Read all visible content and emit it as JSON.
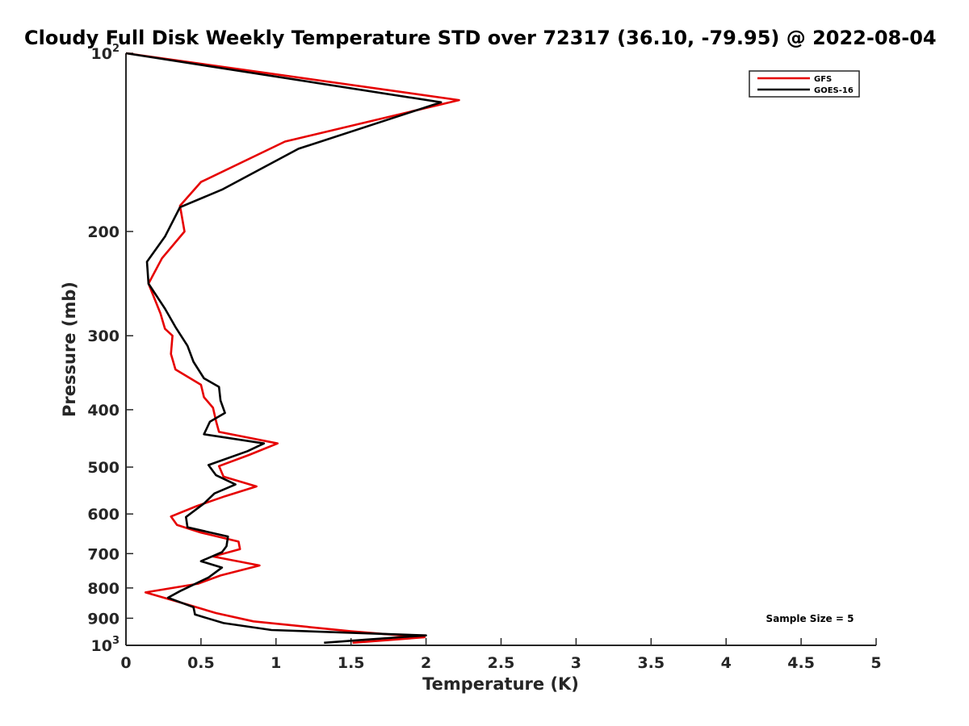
{
  "chart_data": {
    "type": "line",
    "title": "Cloudy Full Disk Weekly Temperature STD over 72317 (36.10, -79.95) @ 2022-08-04",
    "xlabel": "Temperature (K)",
    "ylabel": "Pressure (mb)",
    "xlim": [
      0,
      5
    ],
    "ylim": [
      100,
      1000
    ],
    "y_scale": "log",
    "y_reversed": true,
    "x_ticks": [
      0,
      0.5,
      1,
      1.5,
      2,
      2.5,
      3,
      3.5,
      4,
      4.5,
      5
    ],
    "x_tick_labels": [
      "0",
      "0.5",
      "1",
      "1.5",
      "2",
      "2.5",
      "3",
      "3.5",
      "4",
      "4.5",
      "5"
    ],
    "y_ticks": [
      100,
      200,
      300,
      400,
      500,
      600,
      700,
      800,
      900,
      1000
    ],
    "y_tick_labels": [
      {
        "base": "10",
        "exp": "2"
      },
      {
        "base": "200",
        "exp": ""
      },
      {
        "base": "300",
        "exp": ""
      },
      {
        "base": "400",
        "exp": ""
      },
      {
        "base": "500",
        "exp": ""
      },
      {
        "base": "600",
        "exp": ""
      },
      {
        "base": "700",
        "exp": ""
      },
      {
        "base": "800",
        "exp": ""
      },
      {
        "base": "900",
        "exp": ""
      },
      {
        "base": "10",
        "exp": "3"
      }
    ],
    "grid": false,
    "legend_position": "top-right",
    "series": [
      {
        "name": "GFS",
        "color": "#e60000",
        "points": [
          [
            0.0,
            100
          ],
          [
            2.22,
            120
          ],
          [
            1.06,
            141
          ],
          [
            0.5,
            165
          ],
          [
            0.36,
            181
          ],
          [
            0.39,
            200
          ],
          [
            0.24,
            222
          ],
          [
            0.15,
            245
          ],
          [
            0.23,
            275
          ],
          [
            0.26,
            292
          ],
          [
            0.31,
            300
          ],
          [
            0.3,
            322
          ],
          [
            0.33,
            342
          ],
          [
            0.5,
            363
          ],
          [
            0.52,
            381
          ],
          [
            0.58,
            397
          ],
          [
            0.6,
            418
          ],
          [
            0.62,
            436
          ],
          [
            1.01,
            456
          ],
          [
            0.82,
            477
          ],
          [
            0.62,
            498
          ],
          [
            0.65,
            519
          ],
          [
            0.87,
            539
          ],
          [
            0.66,
            560
          ],
          [
            0.47,
            582
          ],
          [
            0.3,
            606
          ],
          [
            0.34,
            626
          ],
          [
            0.5,
            645
          ],
          [
            0.75,
            668
          ],
          [
            0.76,
            688
          ],
          [
            0.58,
            708
          ],
          [
            0.89,
            733
          ],
          [
            0.63,
            762
          ],
          [
            0.48,
            787
          ],
          [
            0.13,
            814
          ],
          [
            0.4,
            852
          ],
          [
            0.6,
            882
          ],
          [
            0.85,
            911
          ],
          [
            1.5,
            947
          ],
          [
            1.99,
            969
          ],
          [
            1.51,
            990
          ]
        ]
      },
      {
        "name": "GOES-16",
        "color": "#000000",
        "points": [
          [
            0.0,
            100
          ],
          [
            2.1,
            121
          ],
          [
            1.15,
            145
          ],
          [
            0.64,
            170
          ],
          [
            0.36,
            182
          ],
          [
            0.26,
            204
          ],
          [
            0.14,
            225
          ],
          [
            0.15,
            245
          ],
          [
            0.26,
            270
          ],
          [
            0.33,
            290
          ],
          [
            0.41,
            312
          ],
          [
            0.45,
            332
          ],
          [
            0.52,
            354
          ],
          [
            0.62,
            366
          ],
          [
            0.63,
            386
          ],
          [
            0.66,
            405
          ],
          [
            0.56,
            419
          ],
          [
            0.52,
            440
          ],
          [
            0.92,
            456
          ],
          [
            0.81,
            470
          ],
          [
            0.55,
            496
          ],
          [
            0.6,
            516
          ],
          [
            0.73,
            535
          ],
          [
            0.59,
            554
          ],
          [
            0.52,
            576
          ],
          [
            0.4,
            607
          ],
          [
            0.41,
            632
          ],
          [
            0.68,
            655
          ],
          [
            0.67,
            680
          ],
          [
            0.64,
            696
          ],
          [
            0.5,
            721
          ],
          [
            0.64,
            739
          ],
          [
            0.55,
            768
          ],
          [
            0.36,
            810
          ],
          [
            0.28,
            831
          ],
          [
            0.45,
            862
          ],
          [
            0.46,
            887
          ],
          [
            0.65,
            917
          ],
          [
            0.97,
            942
          ],
          [
            2.0,
            962
          ],
          [
            1.6,
            978
          ],
          [
            1.32,
            990
          ]
        ]
      }
    ],
    "annotations": [
      {
        "text": "Sample Size = 5"
      }
    ]
  }
}
